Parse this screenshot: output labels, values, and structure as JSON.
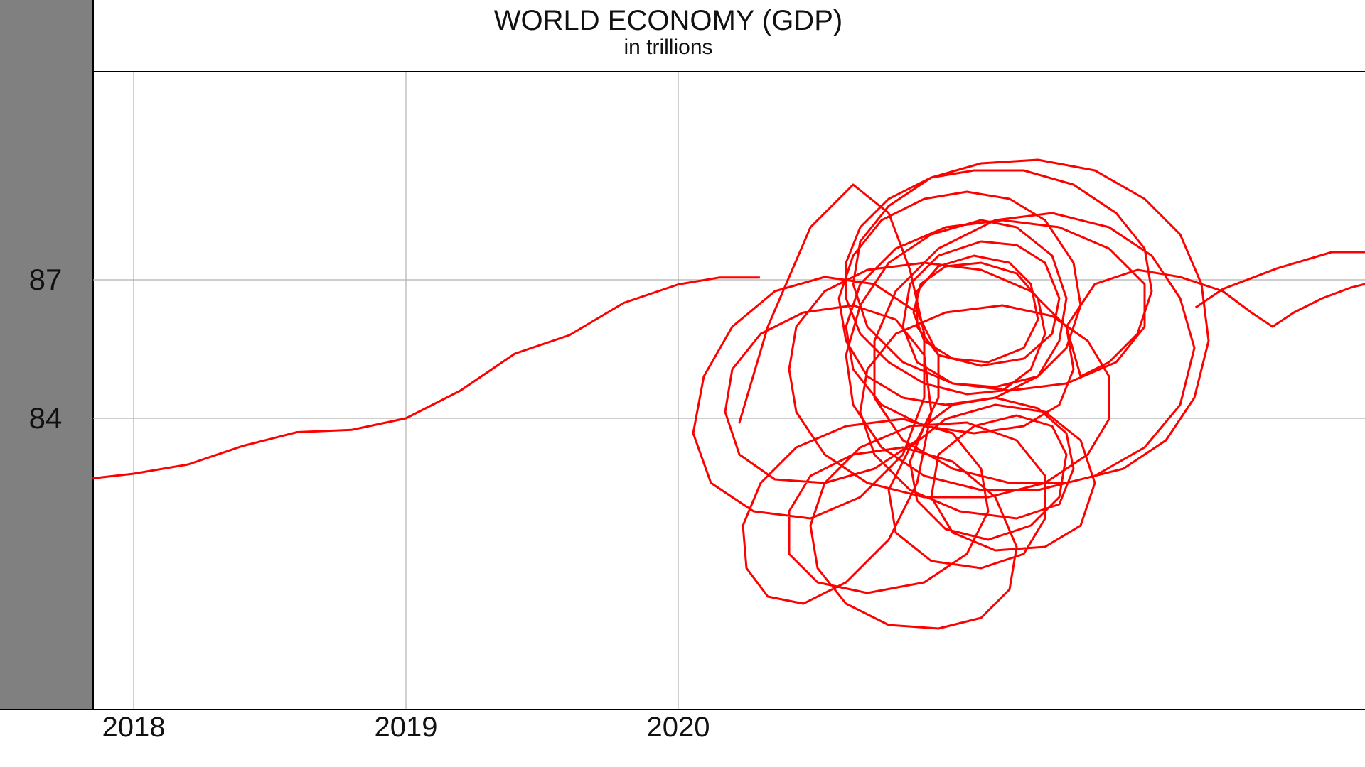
{
  "chart_data": {
    "type": "line",
    "title": "WORLD ECONOMY (GDP)",
    "subtitle": "in trillions",
    "xlabel": "",
    "ylabel": "",
    "x_ticks": [
      "2018",
      "2019",
      "2020"
    ],
    "y_ticks": [
      84,
      87
    ],
    "grid": true,
    "legend": "none",
    "colors": {
      "line": "#ff0000",
      "left_band": "#808080",
      "grid": "#b0b0b0",
      "axis": "#000000",
      "background": "#ffffff"
    },
    "series": [
      {
        "values": [
          {
            "x": 2017.85,
            "y": 82.7
          },
          {
            "x": 2018.0,
            "y": 82.8
          },
          {
            "x": 2018.2,
            "y": 83.0
          },
          {
            "x": 2018.4,
            "y": 83.4
          },
          {
            "x": 2018.6,
            "y": 83.7
          },
          {
            "x": 2018.8,
            "y": 83.75
          },
          {
            "x": 2019.0,
            "y": 84.0
          },
          {
            "x": 2019.2,
            "y": 84.6
          },
          {
            "x": 2019.4,
            "y": 85.4
          },
          {
            "x": 2019.6,
            "y": 85.8
          },
          {
            "x": 2019.8,
            "y": 86.5
          },
          {
            "x": 2020.0,
            "y": 86.9
          },
          {
            "x": 2020.15,
            "y": 87.05
          },
          {
            "x": 2020.3,
            "y": 87.05
          }
        ]
      },
      {
        "values": [
          {
            "x": 2021.9,
            "y": 86.4
          },
          {
            "x": 2022.0,
            "y": 86.8
          },
          {
            "x": 2022.2,
            "y": 87.25
          },
          {
            "x": 2022.4,
            "y": 87.6
          },
          {
            "x": 2022.6,
            "y": 87.6
          },
          {
            "x": 2022.8,
            "y": 87.45
          },
          {
            "x": 2023.0,
            "y": 87.45
          },
          {
            "x": 2023.1,
            "y": 87.55
          }
        ]
      }
    ]
  }
}
